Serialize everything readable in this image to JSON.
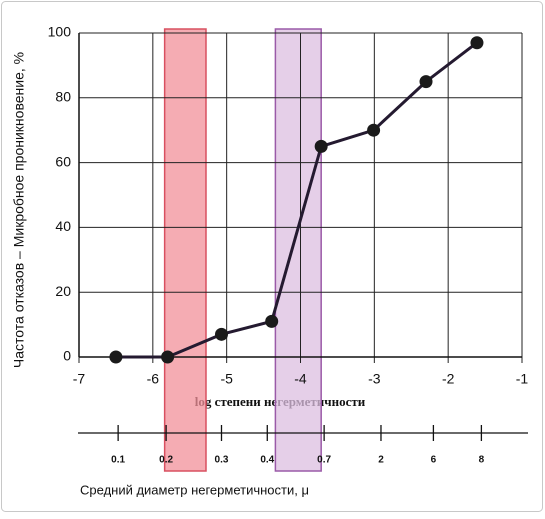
{
  "chart_data": {
    "type": "line",
    "ylabel": "Частота отказов – Микробное проникновение, %",
    "xlabel": "log степени негерметичности",
    "x2label": "Средний диаметр негерметичности, μ",
    "xlim": [
      -7,
      -1
    ],
    "xticks": [
      -7,
      -6,
      -5,
      -4,
      -3,
      -2,
      -1
    ],
    "ylim": [
      0,
      100
    ],
    "yticks": [
      0,
      20,
      40,
      60,
      80,
      100
    ],
    "grid": true,
    "x": [
      -6.5,
      -5.8,
      -5.07,
      -4.39,
      -3.72,
      -3.01,
      -2.3,
      -1.61
    ],
    "series": [
      {
        "name": null,
        "color": "#241a30",
        "values": [
          0,
          0,
          7,
          11,
          65,
          70,
          85,
          97
        ]
      }
    ],
    "x2ticks": [
      {
        "value": -6.47,
        "label": "0.1"
      },
      {
        "value": -5.82,
        "label": "0.2"
      },
      {
        "value": -5.07,
        "label": "0.3"
      },
      {
        "value": -4.45,
        "label": "0.4"
      },
      {
        "value": -3.68,
        "label": "0.7"
      },
      {
        "value": -2.91,
        "label": "2"
      },
      {
        "value": -2.2,
        "label": "6"
      },
      {
        "value": -1.55,
        "label": "8"
      }
    ],
    "bands": [
      {
        "x0": -5.84,
        "x1": -5.28,
        "color": "#f2909a",
        "edge": "#d85060"
      },
      {
        "x0": -4.34,
        "x1": -3.72,
        "color": "#dcbfe0",
        "edge": "#9a5aa8"
      }
    ]
  }
}
